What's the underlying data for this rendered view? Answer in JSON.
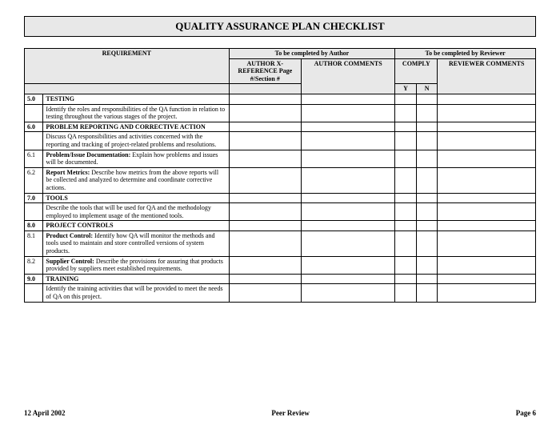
{
  "title": "QUALITY ASSURANCE PLAN CHECKLIST",
  "headers": {
    "requirement": "REQUIREMENT",
    "author_group": "To be completed by Author",
    "reviewer_group": "To be completed by Reviewer",
    "xref": "AUTHOR X-REFERENCE Page #/Section #",
    "author_comments": "AUTHOR COMMENTS",
    "comply": "COMPLY",
    "reviewer_comments": "REVIEWER COMMENTS",
    "y": "Y",
    "n": "N"
  },
  "sections": {
    "s50": {
      "num": "5.0",
      "label": "TESTING"
    },
    "s50_1": {
      "num": "",
      "text": "Identify the roles and responsibilities of the QA function in relation to testing throughout the various stages of the project."
    },
    "s60": {
      "num": "6.0",
      "label": "PROBLEM REPORTING AND CORRECTIVE ACTION"
    },
    "s60_1": {
      "num": "",
      "text": "Discuss QA responsibilities and activities concerned with the reporting and tracking of project-related problems and resolutions."
    },
    "s61": {
      "num": "6.1",
      "bold": "Problem/Issue Documentation:",
      "text": " Explain how problems and issues will be documented."
    },
    "s62": {
      "num": "6.2",
      "bold": "Report Metrics:",
      "text": " Describe how metrics from the above reports will be collected and analyzed to determine and coordinate corrective actions."
    },
    "s70": {
      "num": "7.0",
      "label": "TOOLS"
    },
    "s70_1": {
      "num": "",
      "text": "Describe the tools that will be used for QA and the methodology employed to implement usage of the mentioned tools."
    },
    "s80": {
      "num": "8.0",
      "label": "PROJECT CONTROLS"
    },
    "s81": {
      "num": "8.1",
      "bold": "Product Control:",
      "text": " Identify how QA will monitor the methods and tools used to maintain and store controlled versions of system products."
    },
    "s82": {
      "num": "8.2",
      "bold": "Supplier Control:",
      "text": " Describe the provisions for assuring that products provided by suppliers meet established requirements."
    },
    "s90": {
      "num": "9.0",
      "label": "TRAINING"
    },
    "s90_1": {
      "num": "",
      "text": "Identify the training activities that will be provided to meet the needs of QA on this project."
    }
  },
  "footer": {
    "date": "12 April 2002",
    "center": "Peer Review",
    "page": "Page 6"
  },
  "colors": {
    "header_bg": "#e8e8e8",
    "border": "#000000",
    "text": "#000000",
    "page_bg": "#ffffff"
  }
}
